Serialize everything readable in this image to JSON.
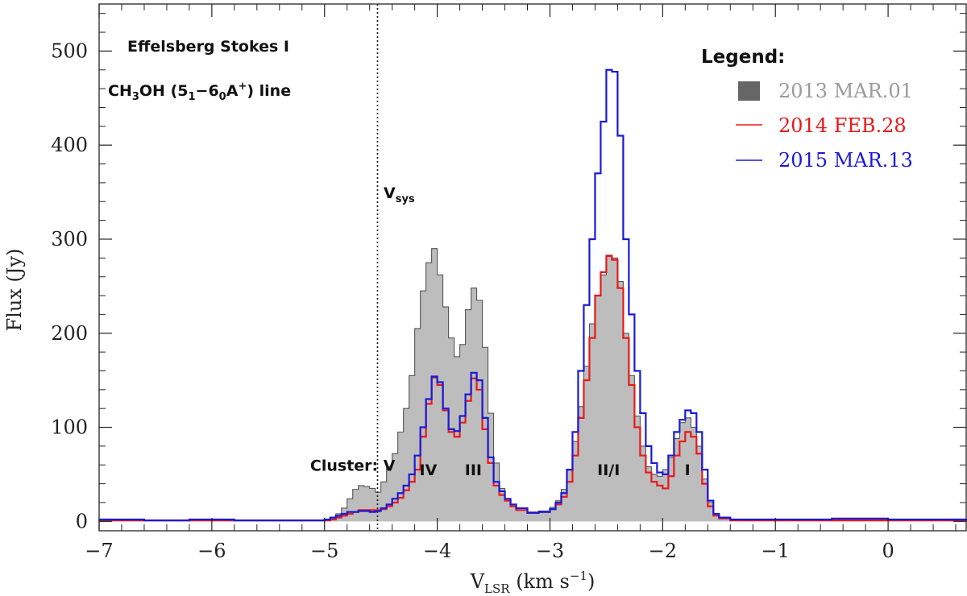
{
  "chart_data": {
    "type": "step-line",
    "title_lines": [
      "Effelsberg Stokes I",
      "CH3OH (51−60A+) line"
    ],
    "xlabel": "V_LSR (km s^-1)",
    "ylabel": "Flux (Jy)",
    "xlim": [
      -7,
      0.7
    ],
    "ylim": [
      -10,
      550
    ],
    "xticks": [
      -7,
      -6,
      -5,
      -4,
      -3,
      -2,
      -1,
      0
    ],
    "xtick_labels": [
      "−7",
      "−6",
      "−5",
      "−4",
      "−3",
      "−2",
      "−1",
      "0"
    ],
    "yticks": [
      0,
      100,
      200,
      300,
      400,
      500
    ],
    "ytick_labels": [
      "0",
      "100",
      "200",
      "300",
      "400",
      "500"
    ],
    "vsys": -4.53,
    "vsys_label": "V_sys",
    "legend_title": "Legend:",
    "legend_placement": "top-right",
    "annotations": [
      {
        "text": "Cluster: V",
        "x": -4.75,
        "y": 60
      },
      {
        "text": "IV",
        "x": -4.08,
        "y": 55
      },
      {
        "text": "III",
        "x": -3.68,
        "y": 55
      },
      {
        "text": "II/I",
        "x": -2.48,
        "y": 55
      },
      {
        "text": "I",
        "x": -1.78,
        "y": 55
      }
    ],
    "series": [
      {
        "name": "2013 MAR.01",
        "style": "filled",
        "color": "#bdbdbd",
        "edge": "#555555",
        "legend_color": "#9a9a9a",
        "points": [
          [
            -7,
            2
          ],
          [
            -6.8,
            2
          ],
          [
            -6.6,
            1
          ],
          [
            -6.4,
            1
          ],
          [
            -6.2,
            2
          ],
          [
            -6.0,
            2
          ],
          [
            -5.8,
            1
          ],
          [
            -5.6,
            1
          ],
          [
            -5.4,
            1
          ],
          [
            -5.2,
            1
          ],
          [
            -5.0,
            2
          ],
          [
            -4.95,
            4
          ],
          [
            -4.9,
            8
          ],
          [
            -4.85,
            14
          ],
          [
            -4.8,
            24
          ],
          [
            -4.75,
            34
          ],
          [
            -4.7,
            38
          ],
          [
            -4.65,
            37
          ],
          [
            -4.6,
            35
          ],
          [
            -4.55,
            31
          ],
          [
            -4.5,
            42
          ],
          [
            -4.45,
            58
          ],
          [
            -4.4,
            72
          ],
          [
            -4.35,
            95
          ],
          [
            -4.3,
            120
          ],
          [
            -4.25,
            155
          ],
          [
            -4.2,
            205
          ],
          [
            -4.15,
            245
          ],
          [
            -4.1,
            275
          ],
          [
            -4.05,
            290
          ],
          [
            -4.0,
            262
          ],
          [
            -3.95,
            228
          ],
          [
            -3.9,
            195
          ],
          [
            -3.85,
            175
          ],
          [
            -3.8,
            188
          ],
          [
            -3.75,
            225
          ],
          [
            -3.7,
            248
          ],
          [
            -3.65,
            235
          ],
          [
            -3.6,
            185
          ],
          [
            -3.55,
            115
          ],
          [
            -3.5,
            62
          ],
          [
            -3.45,
            35
          ],
          [
            -3.4,
            22
          ],
          [
            -3.35,
            16
          ],
          [
            -3.3,
            12
          ],
          [
            -3.2,
            10
          ],
          [
            -3.1,
            11
          ],
          [
            -3.0,
            15
          ],
          [
            -2.95,
            22
          ],
          [
            -2.9,
            34
          ],
          [
            -2.85,
            55
          ],
          [
            -2.8,
            85
          ],
          [
            -2.75,
            122
          ],
          [
            -2.7,
            165
          ],
          [
            -2.65,
            210
          ],
          [
            -2.6,
            240
          ],
          [
            -2.55,
            262
          ],
          [
            -2.5,
            283
          ],
          [
            -2.45,
            280
          ],
          [
            -2.4,
            255
          ],
          [
            -2.35,
            200
          ],
          [
            -2.3,
            155
          ],
          [
            -2.25,
            112
          ],
          [
            -2.2,
            80
          ],
          [
            -2.15,
            58
          ],
          [
            -2.1,
            50
          ],
          [
            -2.05,
            48
          ],
          [
            -2.0,
            55
          ],
          [
            -1.95,
            68
          ],
          [
            -1.9,
            88
          ],
          [
            -1.85,
            105
          ],
          [
            -1.8,
            110
          ],
          [
            -1.75,
            100
          ],
          [
            -1.7,
            80
          ],
          [
            -1.65,
            45
          ],
          [
            -1.6,
            20
          ],
          [
            -1.55,
            8
          ],
          [
            -1.5,
            4
          ],
          [
            -1.4,
            2
          ],
          [
            -1.0,
            2
          ],
          [
            -0.5,
            2
          ],
          [
            0.0,
            2
          ],
          [
            0.7,
            2
          ]
        ]
      },
      {
        "name": "2014 FEB.28",
        "style": "line",
        "color": "#e8191c",
        "points": [
          [
            -7,
            1
          ],
          [
            -6.0,
            1
          ],
          [
            -5.0,
            1
          ],
          [
            -4.95,
            2
          ],
          [
            -4.9,
            4
          ],
          [
            -4.85,
            6
          ],
          [
            -4.8,
            8
          ],
          [
            -4.75,
            10
          ],
          [
            -4.7,
            12
          ],
          [
            -4.65,
            12
          ],
          [
            -4.6,
            12
          ],
          [
            -4.55,
            12
          ],
          [
            -4.5,
            13
          ],
          [
            -4.45,
            16
          ],
          [
            -4.4,
            20
          ],
          [
            -4.35,
            25
          ],
          [
            -4.3,
            33
          ],
          [
            -4.25,
            42
          ],
          [
            -4.2,
            55
          ],
          [
            -4.15,
            90
          ],
          [
            -4.1,
            125
          ],
          [
            -4.05,
            153
          ],
          [
            -4.0,
            145
          ],
          [
            -3.95,
            118
          ],
          [
            -3.9,
            95
          ],
          [
            -3.85,
            90
          ],
          [
            -3.8,
            105
          ],
          [
            -3.75,
            128
          ],
          [
            -3.7,
            152
          ],
          [
            -3.65,
            140
          ],
          [
            -3.6,
            98
          ],
          [
            -3.55,
            62
          ],
          [
            -3.5,
            38
          ],
          [
            -3.45,
            28
          ],
          [
            -3.4,
            22
          ],
          [
            -3.35,
            16
          ],
          [
            -3.3,
            12
          ],
          [
            -3.2,
            9
          ],
          [
            -3.1,
            10
          ],
          [
            -3.0,
            13
          ],
          [
            -2.95,
            18
          ],
          [
            -2.9,
            26
          ],
          [
            -2.85,
            42
          ],
          [
            -2.8,
            70
          ],
          [
            -2.75,
            110
          ],
          [
            -2.7,
            150
          ],
          [
            -2.65,
            195
          ],
          [
            -2.6,
            240
          ],
          [
            -2.55,
            265
          ],
          [
            -2.5,
            282
          ],
          [
            -2.45,
            278
          ],
          [
            -2.4,
            248
          ],
          [
            -2.35,
            195
          ],
          [
            -2.3,
            145
          ],
          [
            -2.25,
            100
          ],
          [
            -2.2,
            70
          ],
          [
            -2.15,
            52
          ],
          [
            -2.1,
            42
          ],
          [
            -2.05,
            38
          ],
          [
            -2.0,
            35
          ],
          [
            -1.95,
            48
          ],
          [
            -1.9,
            70
          ],
          [
            -1.85,
            85
          ],
          [
            -1.8,
            95
          ],
          [
            -1.75,
            90
          ],
          [
            -1.7,
            72
          ],
          [
            -1.65,
            40
          ],
          [
            -1.6,
            16
          ],
          [
            -1.55,
            6
          ],
          [
            -1.5,
            3
          ],
          [
            -1.4,
            1
          ],
          [
            -1.0,
            1
          ],
          [
            0.0,
            1
          ],
          [
            0.7,
            1
          ]
        ]
      },
      {
        "name": "2015 MAR.13",
        "style": "line",
        "color": "#1a1ad6",
        "points": [
          [
            -7,
            2
          ],
          [
            -6.8,
            2
          ],
          [
            -6.6,
            1
          ],
          [
            -6.4,
            1
          ],
          [
            -6.2,
            2
          ],
          [
            -6.0,
            2
          ],
          [
            -5.8,
            1
          ],
          [
            -5.4,
            1
          ],
          [
            -5.0,
            2
          ],
          [
            -4.95,
            4
          ],
          [
            -4.9,
            6
          ],
          [
            -4.85,
            8
          ],
          [
            -4.8,
            10
          ],
          [
            -4.75,
            10
          ],
          [
            -4.7,
            11
          ],
          [
            -4.65,
            11
          ],
          [
            -4.6,
            10
          ],
          [
            -4.55,
            11
          ],
          [
            -4.5,
            14
          ],
          [
            -4.45,
            18
          ],
          [
            -4.4,
            24
          ],
          [
            -4.35,
            30
          ],
          [
            -4.3,
            38
          ],
          [
            -4.25,
            50
          ],
          [
            -4.2,
            70
          ],
          [
            -4.15,
            100
          ],
          [
            -4.1,
            130
          ],
          [
            -4.05,
            154
          ],
          [
            -4.0,
            148
          ],
          [
            -3.95,
            120
          ],
          [
            -3.9,
            98
          ],
          [
            -3.85,
            96
          ],
          [
            -3.8,
            112
          ],
          [
            -3.75,
            135
          ],
          [
            -3.7,
            158
          ],
          [
            -3.65,
            150
          ],
          [
            -3.6,
            110
          ],
          [
            -3.55,
            68
          ],
          [
            -3.5,
            42
          ],
          [
            -3.45,
            32
          ],
          [
            -3.4,
            24
          ],
          [
            -3.35,
            18
          ],
          [
            -3.3,
            14
          ],
          [
            -3.2,
            9
          ],
          [
            -3.1,
            10
          ],
          [
            -3.0,
            13
          ],
          [
            -2.95,
            20
          ],
          [
            -2.9,
            30
          ],
          [
            -2.85,
            55
          ],
          [
            -2.8,
            95
          ],
          [
            -2.75,
            160
          ],
          [
            -2.7,
            230
          ],
          [
            -2.65,
            300
          ],
          [
            -2.6,
            370
          ],
          [
            -2.55,
            425
          ],
          [
            -2.5,
            480
          ],
          [
            -2.45,
            478
          ],
          [
            -2.4,
            410
          ],
          [
            -2.35,
            300
          ],
          [
            -2.3,
            220
          ],
          [
            -2.25,
            160
          ],
          [
            -2.2,
            115
          ],
          [
            -2.15,
            80
          ],
          [
            -2.1,
            62
          ],
          [
            -2.05,
            52
          ],
          [
            -2.0,
            50
          ],
          [
            -1.95,
            70
          ],
          [
            -1.9,
            95
          ],
          [
            -1.85,
            108
          ],
          [
            -1.8,
            118
          ],
          [
            -1.75,
            115
          ],
          [
            -1.7,
            95
          ],
          [
            -1.65,
            55
          ],
          [
            -1.6,
            22
          ],
          [
            -1.55,
            8
          ],
          [
            -1.5,
            4
          ],
          [
            -1.4,
            2
          ],
          [
            -1.0,
            2
          ],
          [
            -0.5,
            3
          ],
          [
            0.0,
            2
          ],
          [
            0.7,
            2
          ]
        ]
      }
    ]
  }
}
